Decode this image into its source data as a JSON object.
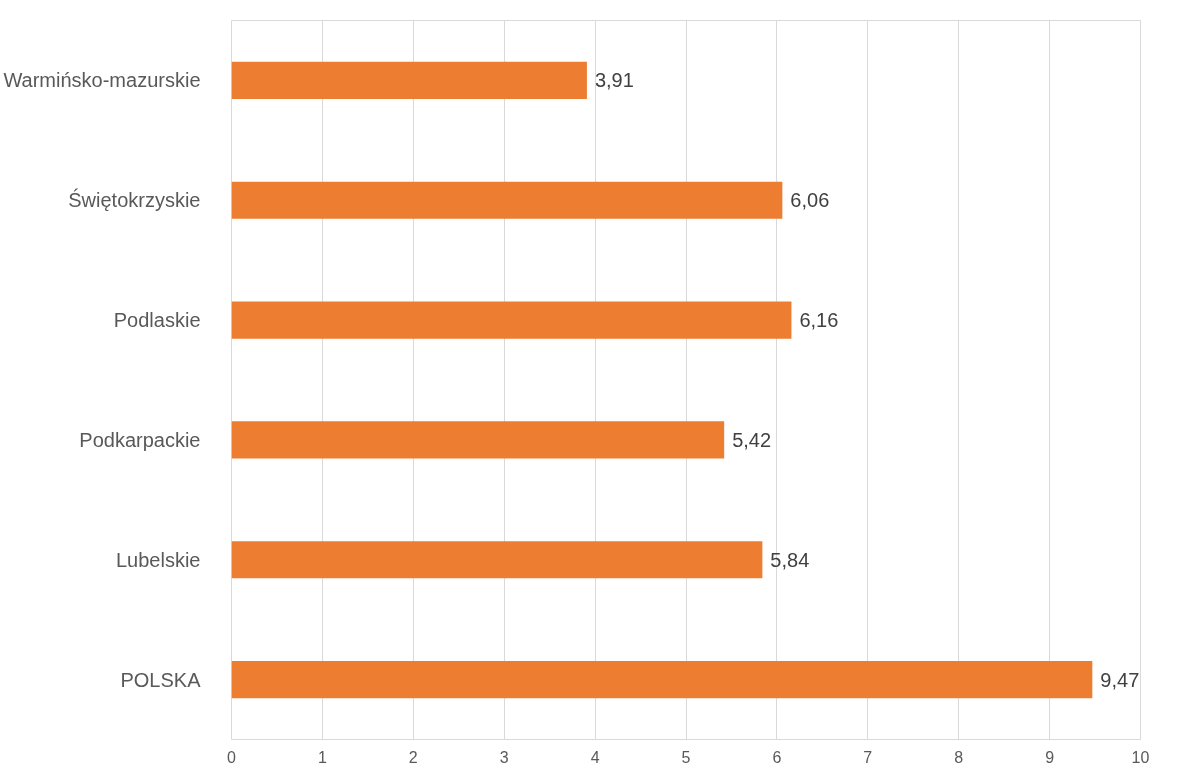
{
  "chart_data": {
    "type": "bar",
    "orientation": "horizontal",
    "categories": [
      "Warmińsko-mazurskie",
      "Świętokrzyskie",
      "Podlaskie",
      "Podkarpackie",
      "Lubelskie",
      "POLSKA"
    ],
    "values": [
      3.91,
      6.06,
      6.16,
      5.42,
      5.84,
      9.47
    ],
    "value_labels": [
      "3,91",
      "6,06",
      "6,16",
      "5,42",
      "5,84",
      "9,47"
    ],
    "color": "#ed7d31",
    "xlim": [
      0,
      10
    ],
    "xticks": [
      0,
      1,
      2,
      3,
      4,
      5,
      6,
      7,
      8,
      9,
      10
    ],
    "grid": "x"
  }
}
